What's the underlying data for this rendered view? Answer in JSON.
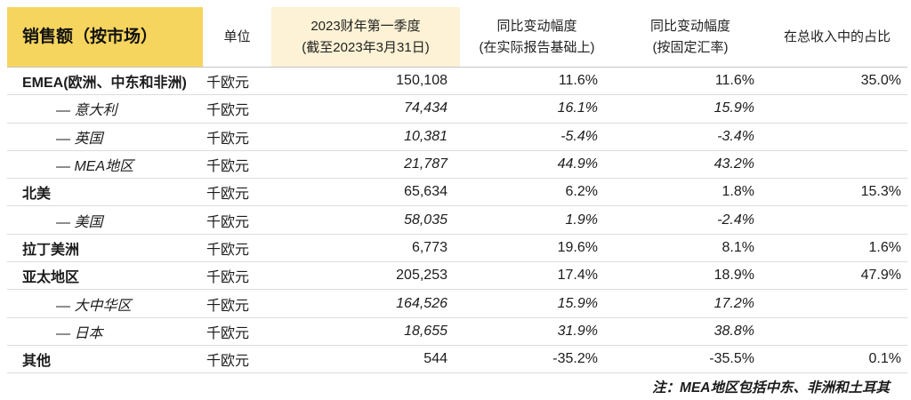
{
  "table": {
    "header": {
      "market": "销售额（按市场）",
      "unit": "单位",
      "sales": [
        "2023财年第一季度",
        "(截至2023年3月31日)"
      ],
      "yoy_reported": [
        "同比变动幅度",
        "(在实际报告基础上)"
      ],
      "yoy_constant_fx": [
        "同比变动幅度",
        "(按固定汇率)"
      ],
      "revenue_share": "在总收入中的占比"
    },
    "rows": [
      {
        "market": "EMEA(欧洲、中东和非洲)",
        "unit": "千欧元",
        "sales": "150,108",
        "yoy_reported": "11.6%",
        "yoy_constant_fx": "11.6%",
        "revenue_share": "35.0%"
      },
      {
        "market": "— 意大利",
        "unit": "千欧元",
        "sales": "74,434",
        "yoy_reported": "16.1%",
        "yoy_constant_fx": "15.9%"
      },
      {
        "market": "— 英国",
        "unit": "千欧元",
        "sales": "10,381",
        "yoy_reported": "-5.4%",
        "yoy_constant_fx": "-3.4%"
      },
      {
        "market": "— MEA地区",
        "unit": "千欧元",
        "sales": "21,787",
        "yoy_reported": "44.9%",
        "yoy_constant_fx": "43.2%"
      },
      {
        "market": "北美",
        "unit": "千欧元",
        "sales": "65,634",
        "yoy_reported": "6.2%",
        "yoy_constant_fx": "1.8%",
        "revenue_share": "15.3%"
      },
      {
        "market": "— 美国",
        "unit": "千欧元",
        "sales": "58,035",
        "yoy_reported": "1.9%",
        "yoy_constant_fx": "-2.4%"
      },
      {
        "market": "拉丁美洲",
        "unit": "千欧元",
        "sales": "6,773",
        "yoy_reported": "19.6%",
        "yoy_constant_fx": "8.1%",
        "revenue_share": "1.6%"
      },
      {
        "market": "亚太地区",
        "unit": "千欧元",
        "sales": "205,253",
        "yoy_reported": "17.4%",
        "yoy_constant_fx": "18.9%",
        "revenue_share": "47.9%"
      },
      {
        "market": "— 大中华区",
        "unit": "千欧元",
        "sales": "164,526",
        "yoy_reported": "15.9%",
        "yoy_constant_fx": "17.2%"
      },
      {
        "market": "— 日本",
        "unit": "千欧元",
        "sales": "18,655",
        "yoy_reported": "31.9%",
        "yoy_constant_fx": "38.8%"
      },
      {
        "market": "其他",
        "unit": "千欧元",
        "sales": "544",
        "yoy_reported": "-35.2%",
        "yoy_constant_fx": "-35.5%",
        "revenue_share": "0.1%"
      }
    ]
  },
  "footnote": "注：MEA地区包括中东、非洲和土耳其",
  "colors": {
    "market_header_highlight": "#F6D55E",
    "sales_header_highlight": "#FDF2D5"
  }
}
